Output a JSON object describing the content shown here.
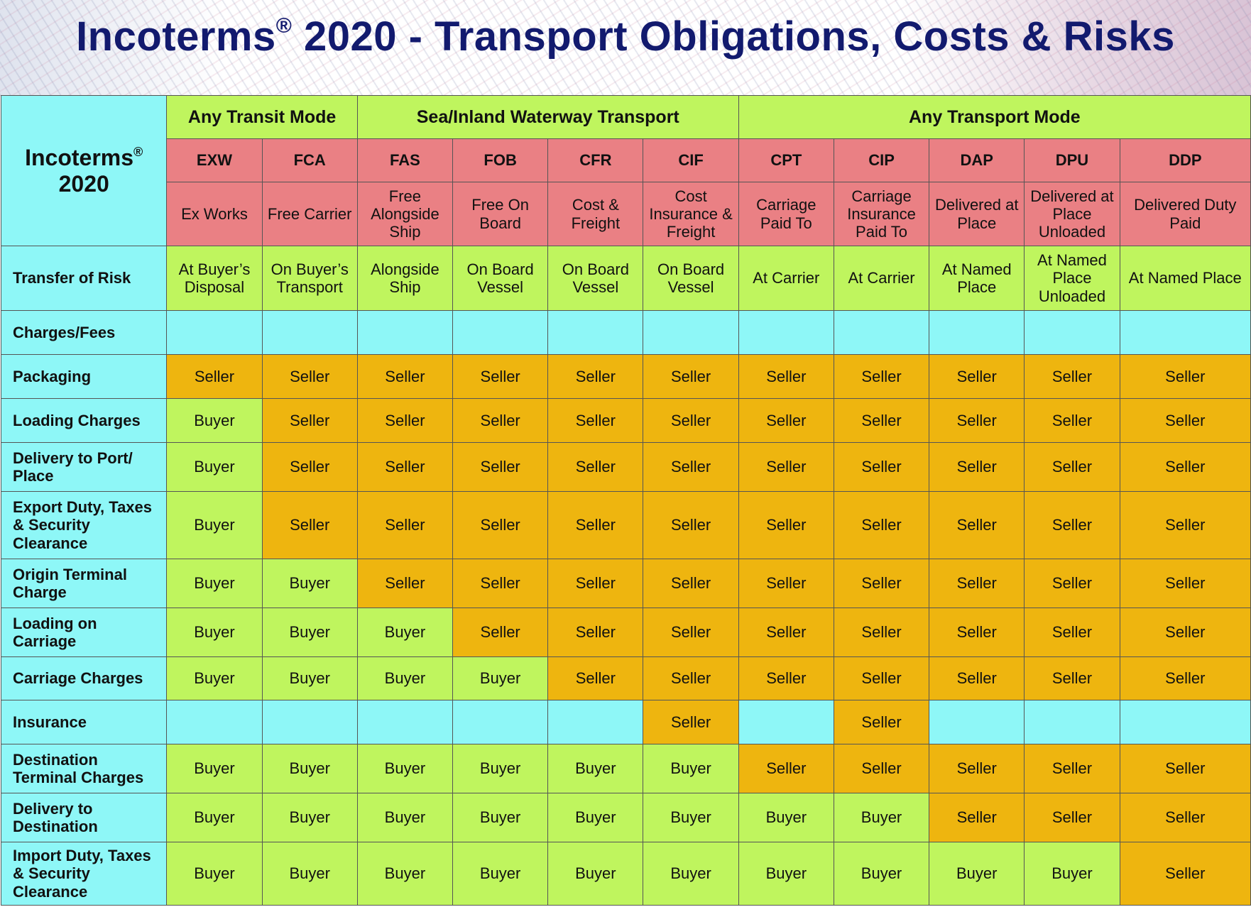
{
  "title": {
    "main": "Incoterms",
    "reg": "®",
    "rest": " 2020 - Transport Obligations, Costs & Risks"
  },
  "corner": {
    "line1": "Incoterms",
    "reg": "®",
    "line2": "2020"
  },
  "groups": [
    "Any Transit Mode",
    "Sea/Inland Waterway Transport",
    "Any Transport Mode"
  ],
  "terms": [
    {
      "code": "EXW",
      "name": "Ex Works"
    },
    {
      "code": "FCA",
      "name": "Free Carrier"
    },
    {
      "code": "FAS",
      "name": "Free Alongside Ship"
    },
    {
      "code": "FOB",
      "name": "Free On Board"
    },
    {
      "code": "CFR",
      "name": "Cost & Freight"
    },
    {
      "code": "CIF",
      "name": "Cost Insurance & Freight"
    },
    {
      "code": "CPT",
      "name": "Carriage Paid To"
    },
    {
      "code": "CIP",
      "name": "Carriage Insurance Paid To"
    },
    {
      "code": "DAP",
      "name": "Delivered at Place"
    },
    {
      "code": "DPU",
      "name": "Delivered at Place Unloaded"
    },
    {
      "code": "DDP",
      "name": "Delivered Duty Paid"
    }
  ],
  "risk": {
    "label": "Transfer of Risk",
    "values": [
      "At Buyer’s Disposal",
      "On Buyer’s Transport",
      "Alongside Ship",
      "On Board Vessel",
      "On Board Vessel",
      "On Board Vessel",
      "At Carrier",
      "At Carrier",
      "At Named Place",
      "At Named Place Unloaded",
      "At Named Place"
    ]
  },
  "rows": [
    {
      "label": "Charges/Fees",
      "values": [
        "",
        "",
        "",
        "",
        "",
        "",
        "",
        "",
        "",
        "",
        ""
      ]
    },
    {
      "label": "Packaging",
      "values": [
        "Seller",
        "Seller",
        "Seller",
        "Seller",
        "Seller",
        "Seller",
        "Seller",
        "Seller",
        "Seller",
        "Seller",
        "Seller"
      ]
    },
    {
      "label": "Loading Charges",
      "values": [
        "Buyer",
        "Seller",
        "Seller",
        "Seller",
        "Seller",
        "Seller",
        "Seller",
        "Seller",
        "Seller",
        "Seller",
        "Seller"
      ]
    },
    {
      "label": "Delivery to Port/ Place",
      "values": [
        "Buyer",
        "Seller",
        "Seller",
        "Seller",
        "Seller",
        "Seller",
        "Seller",
        "Seller",
        "Seller",
        "Seller",
        "Seller"
      ]
    },
    {
      "label": "Export Duty, Taxes & Security Clearance",
      "values": [
        "Buyer",
        "Seller",
        "Seller",
        "Seller",
        "Seller",
        "Seller",
        "Seller",
        "Seller",
        "Seller",
        "Seller",
        "Seller"
      ]
    },
    {
      "label": "Origin Terminal Charge",
      "values": [
        "Buyer",
        "Buyer",
        "Seller",
        "Seller",
        "Seller",
        "Seller",
        "Seller",
        "Seller",
        "Seller",
        "Seller",
        "Seller"
      ]
    },
    {
      "label": "Loading on Carriage",
      "values": [
        "Buyer",
        "Buyer",
        "Buyer",
        "Seller",
        "Seller",
        "Seller",
        "Seller",
        "Seller",
        "Seller",
        "Seller",
        "Seller"
      ]
    },
    {
      "label": "Carriage Charges",
      "values": [
        "Buyer",
        "Buyer",
        "Buyer",
        "Buyer",
        "Seller",
        "Seller",
        "Seller",
        "Seller",
        "Seller",
        "Seller",
        "Seller"
      ]
    },
    {
      "label": "Insurance",
      "values": [
        "",
        "",
        "",
        "",
        "",
        "Seller",
        "",
        "Seller",
        "",
        "",
        ""
      ]
    },
    {
      "label": "Destination Terminal Charges",
      "values": [
        "Buyer",
        "Buyer",
        "Buyer",
        "Buyer",
        "Buyer",
        "Buyer",
        "Seller",
        "Seller",
        "Seller",
        "Seller",
        "Seller"
      ]
    },
    {
      "label": "Delivery to Destination",
      "values": [
        "Buyer",
        "Buyer",
        "Buyer",
        "Buyer",
        "Buyer",
        "Buyer",
        "Buyer",
        "Buyer",
        "Seller",
        "Seller",
        "Seller"
      ]
    },
    {
      "label": "Import Duty, Taxes & Security Clearance",
      "values": [
        "Buyer",
        "Buyer",
        "Buyer",
        "Buyer",
        "Buyer",
        "Buyer",
        "Buyer",
        "Buyer",
        "Buyer",
        "Buyer",
        "Seller"
      ]
    }
  ],
  "colors": {
    "cyan": "#8ef7f7",
    "green": "#bff55e",
    "orange": "#eeb50f",
    "pink": "#ea8084",
    "title": "#121a6e"
  }
}
